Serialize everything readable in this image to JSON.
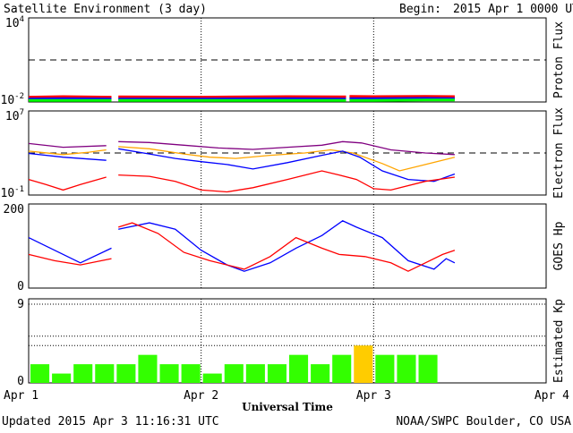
{
  "header": {
    "title": "Satellite Environment (3 day)",
    "begin_label": "Begin:",
    "begin_value": "2015 Apr 1 0000 UTC"
  },
  "footer": {
    "updated": "Updated 2015 Apr  3 11:16:31 UTC",
    "credit": "NOAA/SWPC Boulder, CO USA"
  },
  "colors": {
    "red": "#ff0000",
    "blue": "#0000ff",
    "green": "#00ff00",
    "purple": "#800080",
    "orange": "#ffa500",
    "kp_green": "#33ff00",
    "kp_yellow": "#ffcc00"
  },
  "chart_data": [
    {
      "type": "line",
      "panel": "proton-flux",
      "ylabel": "Proton Flux",
      "log": true,
      "ylim": [
        0.01,
        10000
      ],
      "tick_labels": [
        "10^4",
        "10^-2"
      ],
      "threshold": 10,
      "gap_days": [
        [
          0.48,
          0.52
        ],
        [
          1.84,
          1.86
        ]
      ],
      "data_end_day": 2.47,
      "series": [
        {
          "color_key": "red",
          "x": [
            0,
            0.2,
            0.48,
            0.52,
            1.0,
            1.5,
            1.84,
            1.86,
            2.0,
            2.3,
            2.47
          ],
          "y": [
            0.022,
            0.024,
            0.022,
            0.023,
            0.022,
            0.024,
            0.023,
            0.025,
            0.024,
            0.025,
            0.024
          ]
        },
        {
          "color_key": "blue",
          "x": [
            0,
            0.2,
            0.48,
            0.52,
            1.0,
            1.5,
            1.84,
            1.86,
            2.0,
            2.3,
            2.47
          ],
          "y": [
            0.016,
            0.017,
            0.016,
            0.016,
            0.016,
            0.017,
            0.016,
            0.017,
            0.017,
            0.018,
            0.017
          ]
        },
        {
          "color_key": "green",
          "x": [
            0,
            0.2,
            0.48,
            0.52,
            1.0,
            1.5,
            1.84,
            1.86,
            2.0,
            2.3,
            2.47
          ],
          "y": [
            0.013,
            0.013,
            0.013,
            0.013,
            0.013,
            0.013,
            0.013,
            0.013,
            0.013,
            0.014,
            0.014
          ]
        }
      ]
    },
    {
      "type": "line",
      "panel": "electron-flux",
      "ylabel": "Electron Flux",
      "log": true,
      "ylim": [
        0.1,
        10000000
      ],
      "tick_labels": [
        "10^7",
        "10^-1"
      ],
      "threshold": 1000,
      "gap_days": [
        [
          0.48,
          0.52
        ]
      ],
      "data_end_day": 2.47,
      "series": [
        {
          "color_key": "purple",
          "x": [
            0,
            0.2,
            0.45,
            0.52,
            0.7,
            0.9,
            1.1,
            1.3,
            1.5,
            1.7,
            1.82,
            1.93,
            2.1,
            2.3,
            2.47
          ],
          "y": [
            8000,
            3500,
            5000,
            12000,
            10000,
            5500,
            3000,
            2200,
            3500,
            5500,
            12000,
            9000,
            2000,
            1000,
            700
          ]
        },
        {
          "color_key": "orange",
          "x": [
            0,
            0.2,
            0.35,
            0.45,
            0.52,
            0.7,
            0.9,
            1.05,
            1.2,
            1.4,
            1.6,
            1.75,
            1.88,
            2.05,
            2.15,
            2.3,
            2.47
          ],
          "y": [
            1500,
            700,
            1200,
            2000,
            4000,
            2500,
            800,
            400,
            300,
            600,
            1000,
            2000,
            1000,
            100,
            20,
            80,
            400
          ]
        },
        {
          "color_key": "blue",
          "x": [
            0,
            0.2,
            0.45,
            0.52,
            0.7,
            0.85,
            1.0,
            1.15,
            1.3,
            1.5,
            1.7,
            1.82,
            1.92,
            2.05,
            2.2,
            2.35,
            2.47
          ],
          "y": [
            900,
            400,
            200,
            2500,
            800,
            300,
            150,
            80,
            30,
            120,
            600,
            1500,
            400,
            20,
            3,
            2,
            10
          ]
        },
        {
          "color_key": "red",
          "x": [
            0,
            0.1,
            0.2,
            0.3,
            0.45,
            0.52,
            0.7,
            0.85,
            1.0,
            1.15,
            1.3,
            1.5,
            1.7,
            1.8,
            1.9,
            2.0,
            2.1,
            2.3,
            2.47
          ],
          "y": [
            3,
            1,
            0.3,
            1,
            5,
            8,
            6,
            2,
            0.3,
            0.2,
            0.5,
            3,
            20,
            8,
            3,
            0.4,
            0.3,
            2,
            5
          ]
        }
      ]
    },
    {
      "type": "line",
      "panel": "goes-hp",
      "ylabel": "GOES Hp",
      "log": false,
      "ylim": [
        0,
        200
      ],
      "tick_labels": [
        "200",
        "0"
      ],
      "gap_days": [
        [
          0.48,
          0.52
        ]
      ],
      "data_end_day": 2.47,
      "series": [
        {
          "color_key": "blue",
          "x": [
            0,
            0.15,
            0.3,
            0.48,
            0.52,
            0.7,
            0.85,
            1.0,
            1.15,
            1.25,
            1.4,
            1.55,
            1.7,
            1.82,
            1.9,
            2.05,
            2.2,
            2.35,
            2.42,
            2.47
          ],
          "y": [
            120,
            90,
            60,
            95,
            140,
            155,
            140,
            90,
            55,
            40,
            60,
            95,
            125,
            160,
            145,
            120,
            65,
            45,
            70,
            60
          ]
        },
        {
          "color_key": "red",
          "x": [
            0,
            0.15,
            0.3,
            0.48,
            0.52,
            0.6,
            0.75,
            0.9,
            1.05,
            1.25,
            1.4,
            1.55,
            1.7,
            1.8,
            1.95,
            2.1,
            2.2,
            2.3,
            2.4,
            2.47
          ],
          "y": [
            80,
            65,
            55,
            70,
            145,
            155,
            130,
            85,
            65,
            45,
            75,
            120,
            95,
            80,
            75,
            60,
            40,
            60,
            80,
            90
          ]
        }
      ]
    },
    {
      "type": "bar",
      "panel": "estimated-kp",
      "ylabel": "Estimated Kp",
      "ylim": [
        0,
        9
      ],
      "tick_labels": [
        "9",
        "0"
      ],
      "gridlines": [
        5,
        4
      ],
      "values": [
        2,
        1,
        2,
        2,
        2,
        3,
        2,
        2,
        1,
        2,
        2,
        2,
        3,
        2,
        3,
        4,
        3,
        3,
        3
      ],
      "colors": [
        "kp_green",
        "kp_green",
        "kp_green",
        "kp_green",
        "kp_green",
        "kp_green",
        "kp_green",
        "kp_green",
        "kp_green",
        "kp_green",
        "kp_green",
        "kp_green",
        "kp_green",
        "kp_green",
        "kp_green",
        "kp_yellow",
        "kp_green",
        "kp_green",
        "kp_green"
      ]
    }
  ],
  "x_axis": {
    "label": "Universal Time",
    "days": 3,
    "ticks": [
      "Apr 1",
      "Apr 2",
      "Apr 3",
      "Apr 4"
    ]
  }
}
